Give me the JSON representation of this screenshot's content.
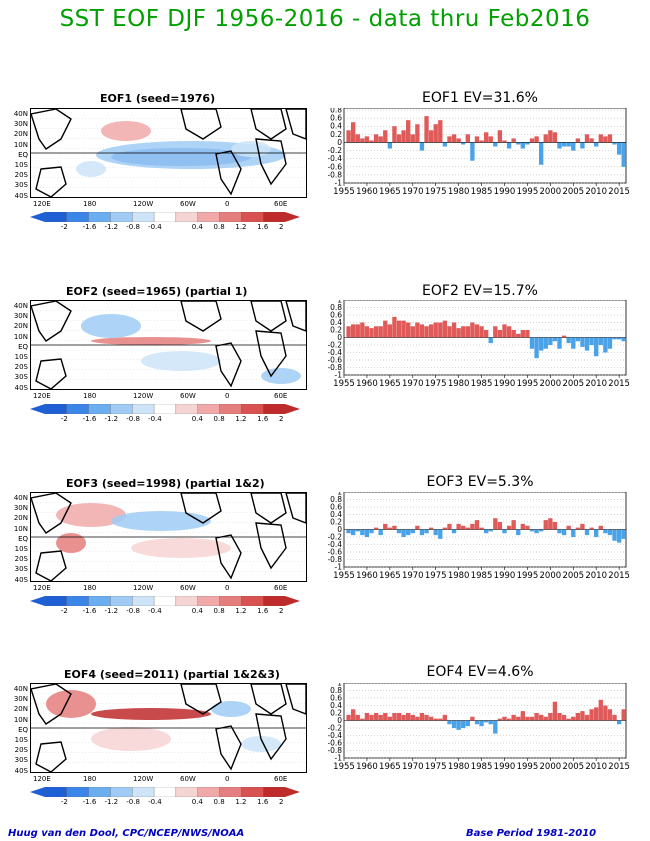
{
  "title": "SST EOF DJF 1956-2016 - data thru Feb2016",
  "footer_left": "Huug van den Dool, CPC/NCEP/NWS/NOAA",
  "footer_right": "Base Period 1981-2010",
  "map_lat_labels": [
    "40N",
    "30N",
    "20N",
    "10N",
    "EQ",
    "10S",
    "20S",
    "30S",
    "40S"
  ],
  "map_lon_labels": [
    "120E",
    "180",
    "120W",
    "60W",
    "0",
    "60E"
  ],
  "colorbar_labels": [
    "-2",
    "-1.6",
    "-1.2",
    "-0.8",
    "-0.4",
    "0.4",
    "0.8",
    "1.2",
    "1.6",
    "2"
  ],
  "colors": {
    "title_green": "#00a000",
    "bar_positive": "#e05a5a",
    "bar_negative": "#4aa3e8",
    "colorbar": [
      "#1e5fd6",
      "#3a86e8",
      "#6aaef0",
      "#9fcbf5",
      "#cde4f9",
      "#ffffff",
      "#f7d4d4",
      "#f0a9a9",
      "#e57e7e",
      "#d85252",
      "#c02a2a"
    ]
  },
  "map_titles": [
    "EOF1  (seed=1976)",
    "EOF2  (seed=1965) (partial 1)",
    "EOF3  (seed=1998) (partial 1&2)",
    "EOF4  (seed=2011) (partial 1&2&3)"
  ],
  "chart_data": [
    {
      "type": "bar",
      "title": "EOF1  EV=31.6%",
      "x": [
        1956,
        1957,
        1958,
        1959,
        1960,
        1961,
        1962,
        1963,
        1964,
        1965,
        1966,
        1967,
        1968,
        1969,
        1970,
        1971,
        1972,
        1973,
        1974,
        1975,
        1976,
        1977,
        1978,
        1979,
        1980,
        1981,
        1982,
        1983,
        1984,
        1985,
        1986,
        1987,
        1988,
        1989,
        1990,
        1991,
        1992,
        1993,
        1994,
        1995,
        1996,
        1997,
        1998,
        1999,
        2000,
        2001,
        2002,
        2003,
        2004,
        2005,
        2006,
        2007,
        2008,
        2009,
        2010,
        2011,
        2012,
        2013,
        2014,
        2015,
        2016
      ],
      "values": [
        0.3,
        0.5,
        0.2,
        0.1,
        0.15,
        0.05,
        0.2,
        0.15,
        0.3,
        -0.15,
        0.4,
        0.2,
        0.3,
        0.55,
        0.2,
        0.45,
        -0.2,
        0.65,
        0.3,
        0.45,
        0.55,
        -0.1,
        0.15,
        0.2,
        0.1,
        -0.05,
        0.2,
        -0.45,
        0.15,
        0.05,
        0.25,
        0.15,
        -0.1,
        0.3,
        0.05,
        -0.15,
        0.1,
        -0.05,
        -0.15,
        -0.05,
        0.1,
        0.15,
        -0.55,
        0.2,
        0.3,
        0.25,
        -0.15,
        -0.1,
        -0.1,
        -0.2,
        0.1,
        -0.15,
        0.2,
        0.1,
        -0.1,
        0.2,
        0.15,
        0.2,
        -0.05,
        -0.3,
        -0.6
      ],
      "xtick_labels": [
        "1955",
        "1960",
        "1965",
        "1970",
        "1975",
        "1980",
        "1985",
        "1990",
        "1995",
        "2000",
        "2005",
        "2010",
        "2015"
      ],
      "ytick_labels": [
        "-1",
        "-0.8",
        "-0.6",
        "-0.4",
        "-0.2",
        "0",
        "0.2",
        "0.4",
        "0.6",
        "0.8"
      ],
      "ylim": [
        -1,
        0.85
      ],
      "grid": true
    },
    {
      "type": "bar",
      "title": "EOF2  EV=15.7%",
      "x": [
        1956,
        1957,
        1958,
        1959,
        1960,
        1961,
        1962,
        1963,
        1964,
        1965,
        1966,
        1967,
        1968,
        1969,
        1970,
        1971,
        1972,
        1973,
        1974,
        1975,
        1976,
        1977,
        1978,
        1979,
        1980,
        1981,
        1982,
        1983,
        1984,
        1985,
        1986,
        1987,
        1988,
        1989,
        1990,
        1991,
        1992,
        1993,
        1994,
        1995,
        1996,
        1997,
        1998,
        1999,
        2000,
        2001,
        2002,
        2003,
        2004,
        2005,
        2006,
        2007,
        2008,
        2009,
        2010,
        2011,
        2012,
        2013,
        2014,
        2015,
        2016
      ],
      "values": [
        0.3,
        0.35,
        0.35,
        0.4,
        0.3,
        0.25,
        0.3,
        0.3,
        0.45,
        0.35,
        0.55,
        0.45,
        0.45,
        0.4,
        0.3,
        0.4,
        0.35,
        0.3,
        0.35,
        0.4,
        0.4,
        0.45,
        0.3,
        0.4,
        0.25,
        0.3,
        0.3,
        0.4,
        0.35,
        0.3,
        0.2,
        -0.15,
        0.3,
        0.2,
        0.35,
        0.3,
        0.2,
        0.1,
        0.2,
        0.2,
        -0.3,
        -0.55,
        -0.35,
        -0.3,
        -0.2,
        -0.1,
        -0.3,
        0.05,
        -0.15,
        -0.3,
        -0.1,
        -0.25,
        -0.35,
        -0.2,
        -0.5,
        -0.2,
        -0.4,
        -0.3,
        -0.05,
        -0.05,
        -0.1
      ],
      "xtick_labels": [
        "1955",
        "1960",
        "1965",
        "1970",
        "1975",
        "1980",
        "1985",
        "1990",
        "1995",
        "2000",
        "2005",
        "2010",
        "2015"
      ],
      "ytick_labels": [
        "-1",
        "-0.8",
        "-0.6",
        "-0.4",
        "-0.2",
        "0",
        "0.2",
        "0.4",
        "0.6",
        "0.8",
        "1"
      ],
      "ylim": [
        -1,
        1
      ],
      "grid": true
    },
    {
      "type": "bar",
      "title": "EOF3  EV=5.3%",
      "x": [
        1956,
        1957,
        1958,
        1959,
        1960,
        1961,
        1962,
        1963,
        1964,
        1965,
        1966,
        1967,
        1968,
        1969,
        1970,
        1971,
        1972,
        1973,
        1974,
        1975,
        1976,
        1977,
        1978,
        1979,
        1980,
        1981,
        1982,
        1983,
        1984,
        1985,
        1986,
        1987,
        1988,
        1989,
        1990,
        1991,
        1992,
        1993,
        1994,
        1995,
        1996,
        1997,
        1998,
        1999,
        2000,
        2001,
        2002,
        2003,
        2004,
        2005,
        2006,
        2007,
        2008,
        2009,
        2010,
        2011,
        2012,
        2013,
        2014,
        2015,
        2016
      ],
      "values": [
        -0.1,
        -0.15,
        -0.05,
        -0.15,
        -0.2,
        -0.1,
        0.05,
        -0.15,
        0.15,
        0.05,
        0.1,
        -0.1,
        -0.2,
        -0.15,
        -0.1,
        0.1,
        -0.15,
        -0.1,
        0.05,
        -0.15,
        -0.25,
        0.05,
        0.15,
        -0.1,
        0.15,
        0.1,
        0.05,
        0.15,
        0.25,
        0.05,
        -0.1,
        -0.05,
        0.3,
        0.2,
        -0.1,
        0.1,
        0.25,
        -0.15,
        0.15,
        0.1,
        -0.05,
        -0.1,
        -0.05,
        0.25,
        0.3,
        0.2,
        -0.1,
        -0.15,
        0.1,
        -0.2,
        0.05,
        0.15,
        -0.15,
        0.05,
        -0.2,
        0.1,
        -0.1,
        -0.15,
        -0.3,
        -0.35,
        -0.25
      ],
      "xtick_labels": [
        "1955",
        "1960",
        "1965",
        "1970",
        "1975",
        "1980",
        "1985",
        "1990",
        "1995",
        "2000",
        "2005",
        "2010",
        "2015"
      ],
      "ytick_labels": [
        "-1",
        "-0.8",
        "-0.6",
        "-0.4",
        "-0.2",
        "0",
        "0.2",
        "0.4",
        "0.6",
        "0.8",
        "1"
      ],
      "ylim": [
        -1,
        1
      ],
      "grid": true
    },
    {
      "type": "bar",
      "title": "EOF4  EV=4.6%",
      "x": [
        1956,
        1957,
        1958,
        1959,
        1960,
        1961,
        1962,
        1963,
        1964,
        1965,
        1966,
        1967,
        1968,
        1969,
        1970,
        1971,
        1972,
        1973,
        1974,
        1975,
        1976,
        1977,
        1978,
        1979,
        1980,
        1981,
        1982,
        1983,
        1984,
        1985,
        1986,
        1987,
        1988,
        1989,
        1990,
        1991,
        1992,
        1993,
        1994,
        1995,
        1996,
        1997,
        1998,
        1999,
        2000,
        2001,
        2002,
        2003,
        2004,
        2005,
        2006,
        2007,
        2008,
        2009,
        2010,
        2011,
        2012,
        2013,
        2014,
        2015,
        2016
      ],
      "values": [
        0.15,
        0.3,
        0.15,
        0.05,
        0.2,
        0.15,
        0.2,
        0.15,
        0.2,
        0.1,
        0.2,
        0.2,
        0.15,
        0.2,
        0.15,
        0.1,
        0.2,
        0.15,
        0.1,
        0.05,
        0.05,
        0.15,
        -0.1,
        -0.2,
        -0.25,
        -0.2,
        -0.15,
        0.1,
        -0.1,
        -0.15,
        -0.05,
        -0.1,
        -0.35,
        0.05,
        0.1,
        0.05,
        0.15,
        0.1,
        0.25,
        0.1,
        0.1,
        0.2,
        0.15,
        0.1,
        0.2,
        0.5,
        0.2,
        0.15,
        0.05,
        0.1,
        0.2,
        0.25,
        0.15,
        0.3,
        0.35,
        0.55,
        0.4,
        0.3,
        0.15,
        -0.1,
        0.3
      ],
      "xtick_labels": [
        "1955",
        "1960",
        "1965",
        "1970",
        "1975",
        "1980",
        "1985",
        "1990",
        "1995",
        "2000",
        "2005",
        "2010",
        "2015"
      ],
      "ytick_labels": [
        "-1",
        "-0.8",
        "-0.6",
        "-0.4",
        "-0.2",
        "0",
        "0.2",
        "0.4",
        "0.6",
        "0.8",
        "1"
      ],
      "ylim": [
        -1,
        1
      ],
      "grid": true
    }
  ]
}
